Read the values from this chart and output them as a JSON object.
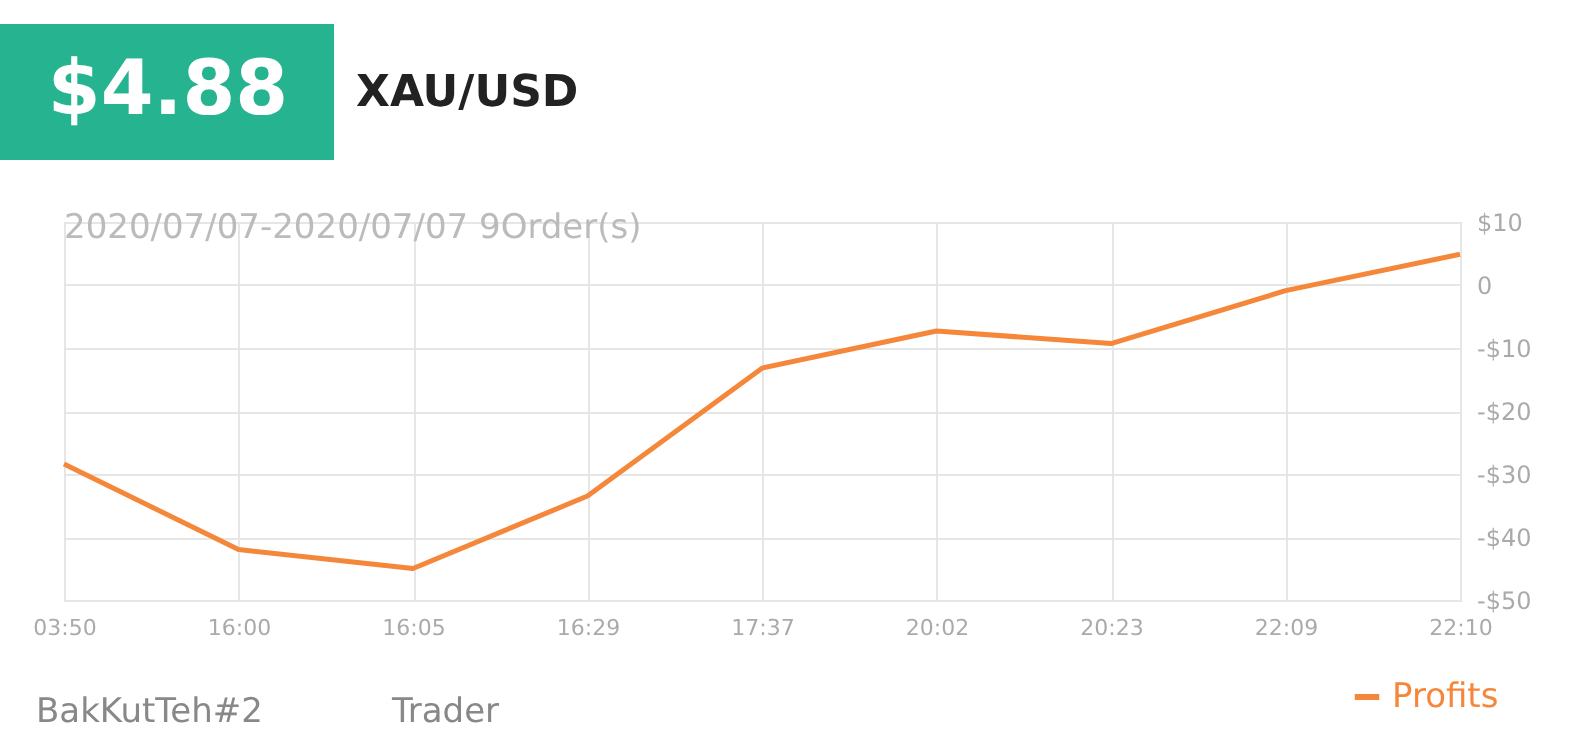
{
  "chart_data": {
    "type": "line",
    "title": "XAU/USD",
    "subtitle": "2020/07/07-2020/07/07 9Order(s)",
    "annotations": [
      "$4.88",
      "BakKutTeh#2",
      "Trader"
    ],
    "categories": [
      "03:50",
      "16:00",
      "16:05",
      "16:29",
      "17:37",
      "20:02",
      "20:23",
      "22:09",
      "22:10"
    ],
    "series": [
      {
        "name": "Profits",
        "color": "#f5873a",
        "values": [
          -28.4,
          -42.0,
          -45.0,
          -33.5,
          -13.2,
          -7.3,
          -9.3,
          -0.9,
          4.88
        ]
      }
    ],
    "ylim": [
      -50,
      10
    ],
    "yticks": [
      {
        "value": 10,
        "label": "$10"
      },
      0,
      {
        "value": -10,
        "label": "-$10"
      },
      {
        "value": -20,
        "label": "-$20"
      },
      {
        "value": -30,
        "label": "-$30"
      },
      {
        "value": -40,
        "label": "-$40"
      },
      {
        "value": -50,
        "label": "-$50"
      }
    ],
    "grid": true,
    "legend": "bottom right",
    "marker": "none",
    "line_style": "solid"
  }
}
